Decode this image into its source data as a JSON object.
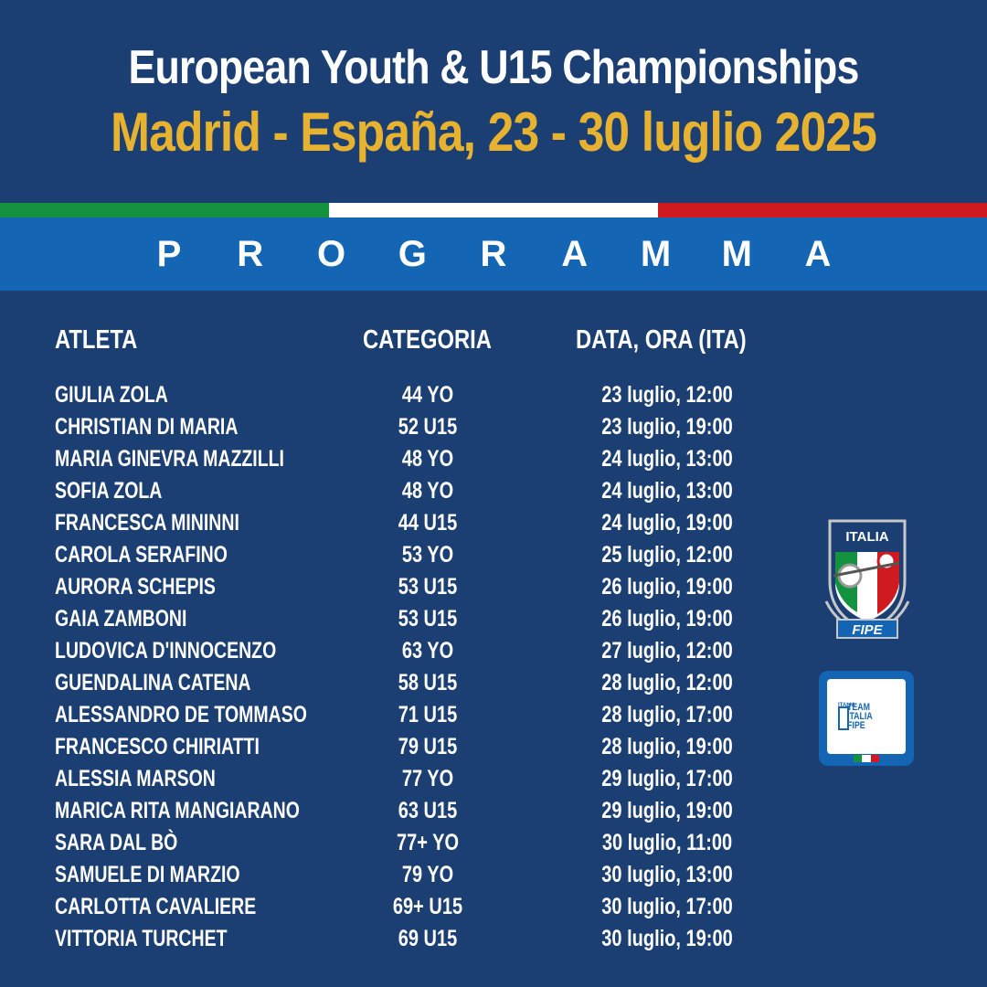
{
  "header": {
    "title": "European Youth & U15 Championships",
    "subtitle": "Madrid - España, 23 - 30 luglio 2025"
  },
  "flag_colors": [
    "#14923f",
    "#ffffff",
    "#cf1a1f"
  ],
  "band": {
    "letters": [
      "P",
      "R",
      "O",
      "G",
      "R",
      "A",
      "M",
      "M",
      "A"
    ]
  },
  "table": {
    "headers": {
      "athlete": "ATLETA",
      "category": "CATEGORIA",
      "date": "DATA, ORA (ITA)"
    },
    "rows": [
      {
        "athlete": "GIULIA ZOLA",
        "category": "44 YO",
        "date": "23 luglio, 12:00"
      },
      {
        "athlete": "CHRISTIAN DI MARIA",
        "category": "52 U15",
        "date": "23 luglio, 19:00"
      },
      {
        "athlete": "MARIA GINEVRA MAZZILLI",
        "category": "48 YO",
        "date": "24 luglio, 13:00"
      },
      {
        "athlete": "SOFIA ZOLA",
        "category": "48 YO",
        "date": "24 luglio, 13:00"
      },
      {
        "athlete": "FRANCESCA MININNI",
        "category": "44 U15",
        "date": "24 luglio, 19:00"
      },
      {
        "athlete": "CAROLA SERAFINO",
        "category": "53 YO",
        "date": "25 luglio, 12:00"
      },
      {
        "athlete": "AURORA SCHEPIS",
        "category": "53 U15",
        "date": "26 luglio, 19:00"
      },
      {
        "athlete": "GAIA ZAMBONI",
        "category": "53 U15",
        "date": "26 luglio, 19:00"
      },
      {
        "athlete": "LUDOVICA D'INNOCENZO",
        "category": "63 YO",
        "date": "27 luglio, 12:00"
      },
      {
        "athlete": "GUENDALINA CATENA",
        "category": "58 U15",
        "date": "28 luglio, 12:00"
      },
      {
        "athlete": "ALESSANDRO DE TOMMASO",
        "category": "71 U15",
        "date": "28 luglio, 17:00"
      },
      {
        "athlete": "FRANCESCO CHIRIATTI",
        "category": "79 U15",
        "date": "28 luglio, 19:00"
      },
      {
        "athlete": "ALESSIA MARSON",
        "category": "77 YO",
        "date": "29 luglio, 17:00"
      },
      {
        "athlete": "MARICA RITA MANGIARANO",
        "category": "63 U15",
        "date": "29 luglio, 19:00"
      },
      {
        "athlete": "SARA DAL BÒ",
        "category": "77+ YO",
        "date": "30 luglio, 11:00"
      },
      {
        "athlete": "SAMUELE DI MARZIO",
        "category": "79 YO",
        "date": "30 luglio, 13:00"
      },
      {
        "athlete": "CARLOTTA CAVALIERE",
        "category": "69+ U15",
        "date": "30 luglio, 17:00"
      },
      {
        "athlete": "VITTORIA TURCHET",
        "category": "69 U15",
        "date": "30 luglio, 19:00"
      }
    ]
  },
  "logos": {
    "shield_top": "ITALIA",
    "shield_bottom": "FIPE",
    "badge_lines": [
      "TEAM",
      "ITALIA",
      "FIPE"
    ],
    "badge_small": "ITALIA"
  }
}
